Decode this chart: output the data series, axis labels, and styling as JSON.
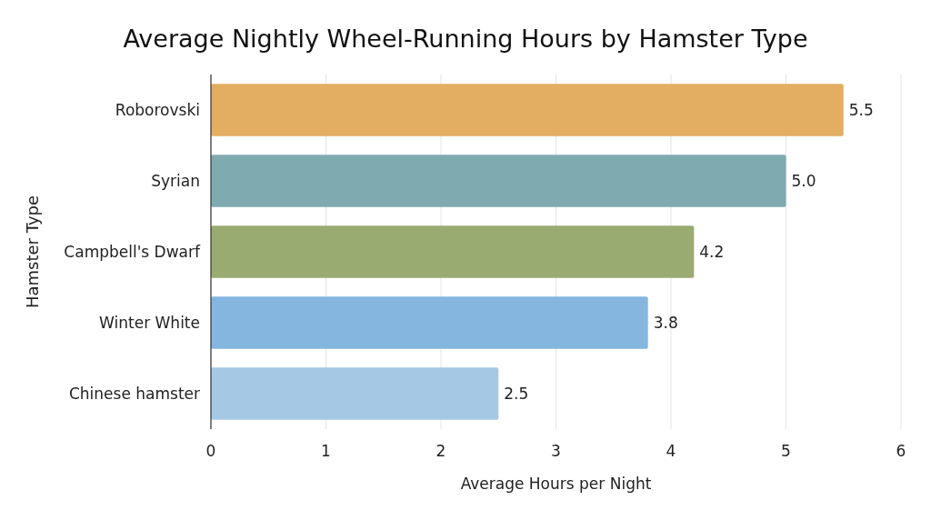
{
  "chart_data": {
    "type": "bar",
    "orientation": "horizontal",
    "title": "Average Nightly Wheel-Running Hours by Hamster Type",
    "xlabel": "Average Hours per Night",
    "ylabel": "Hamster Type",
    "categories": [
      "Roborovski",
      "Syrian",
      "Campbell's Dwarf",
      "Winter White",
      "Chinese hamster"
    ],
    "values": [
      5.5,
      5.0,
      4.2,
      3.8,
      2.5
    ],
    "value_labels": [
      "5.5",
      "5.0",
      "4.2",
      "3.8",
      "2.5"
    ],
    "colors": [
      "#e3ae62",
      "#7faab0",
      "#9aab72",
      "#85b6df",
      "#a5c8e4"
    ],
    "xlim": [
      0,
      6
    ],
    "xticks": [
      0,
      1,
      2,
      3,
      4,
      5,
      6
    ],
    "grid": "x"
  }
}
